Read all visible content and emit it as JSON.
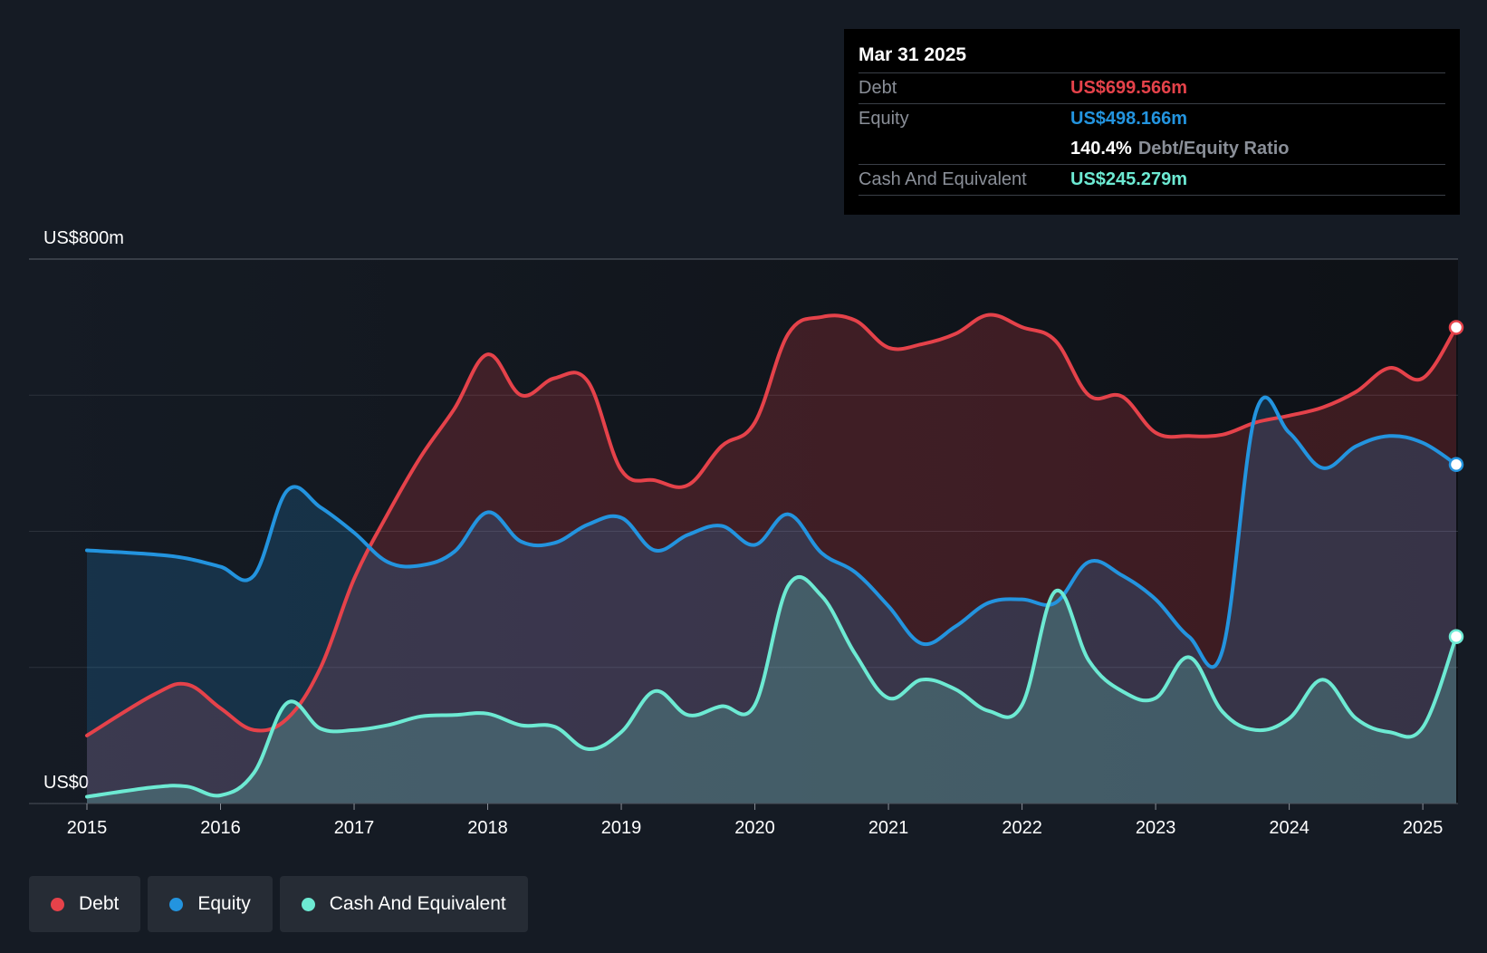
{
  "chart_data": {
    "type": "area",
    "title": "",
    "y_axis_labels": {
      "max": "US$800m",
      "min": "US$0"
    },
    "ylim": [
      0,
      800
    ],
    "xlim": [
      2015,
      2025.25
    ],
    "x_ticks": [
      2015,
      2016,
      2017,
      2018,
      2019,
      2020,
      2021,
      2022,
      2023,
      2024,
      2025
    ],
    "x_tick_labels": [
      "2015",
      "2016",
      "2017",
      "2018",
      "2019",
      "2020",
      "2021",
      "2022",
      "2023",
      "2024",
      "2025"
    ],
    "grid_values": [
      0,
      200,
      400,
      600,
      800
    ],
    "series": [
      {
        "name": "Debt",
        "color": "#e5424a",
        "points": [
          [
            2015.0,
            100
          ],
          [
            2015.5,
            160
          ],
          [
            2015.75,
            175
          ],
          [
            2016.0,
            140
          ],
          [
            2016.25,
            108
          ],
          [
            2016.5,
            125
          ],
          [
            2016.75,
            200
          ],
          [
            2017.0,
            330
          ],
          [
            2017.25,
            425
          ],
          [
            2017.5,
            510
          ],
          [
            2017.75,
            580
          ],
          [
            2018.0,
            660
          ],
          [
            2018.25,
            600
          ],
          [
            2018.5,
            625
          ],
          [
            2018.75,
            620
          ],
          [
            2019.0,
            490
          ],
          [
            2019.25,
            475
          ],
          [
            2019.5,
            468
          ],
          [
            2019.75,
            525
          ],
          [
            2020.0,
            560
          ],
          [
            2020.25,
            690
          ],
          [
            2020.5,
            715
          ],
          [
            2020.75,
            710
          ],
          [
            2021.0,
            670
          ],
          [
            2021.25,
            675
          ],
          [
            2021.5,
            690
          ],
          [
            2021.75,
            718
          ],
          [
            2022.0,
            700
          ],
          [
            2022.25,
            680
          ],
          [
            2022.5,
            600
          ],
          [
            2022.75,
            598
          ],
          [
            2023.0,
            545
          ],
          [
            2023.25,
            540
          ],
          [
            2023.5,
            542
          ],
          [
            2023.75,
            560
          ],
          [
            2024.0,
            570
          ],
          [
            2024.25,
            582
          ],
          [
            2024.5,
            605
          ],
          [
            2024.75,
            640
          ],
          [
            2025.0,
            625
          ],
          [
            2025.25,
            699.566
          ]
        ]
      },
      {
        "name": "Equity",
        "color": "#2394df",
        "points": [
          [
            2015.0,
            372
          ],
          [
            2015.5,
            366
          ],
          [
            2015.75,
            360
          ],
          [
            2016.0,
            348
          ],
          [
            2016.25,
            335
          ],
          [
            2016.5,
            460
          ],
          [
            2016.75,
            435
          ],
          [
            2017.0,
            398
          ],
          [
            2017.25,
            355
          ],
          [
            2017.5,
            350
          ],
          [
            2017.75,
            370
          ],
          [
            2018.0,
            428
          ],
          [
            2018.25,
            385
          ],
          [
            2018.5,
            383
          ],
          [
            2018.75,
            410
          ],
          [
            2019.0,
            420
          ],
          [
            2019.25,
            372
          ],
          [
            2019.5,
            395
          ],
          [
            2019.75,
            408
          ],
          [
            2020.0,
            380
          ],
          [
            2020.25,
            425
          ],
          [
            2020.5,
            368
          ],
          [
            2020.75,
            340
          ],
          [
            2021.0,
            290
          ],
          [
            2021.25,
            235
          ],
          [
            2021.5,
            260
          ],
          [
            2021.75,
            295
          ],
          [
            2022.0,
            300
          ],
          [
            2022.25,
            295
          ],
          [
            2022.5,
            355
          ],
          [
            2022.75,
            335
          ],
          [
            2023.0,
            300
          ],
          [
            2023.25,
            245
          ],
          [
            2023.5,
            225
          ],
          [
            2023.75,
            575
          ],
          [
            2024.0,
            545
          ],
          [
            2024.25,
            493
          ],
          [
            2024.5,
            525
          ],
          [
            2024.75,
            540
          ],
          [
            2025.0,
            530
          ],
          [
            2025.25,
            498.166
          ]
        ]
      },
      {
        "name": "Cash And Equivalent",
        "color": "#6dead3",
        "points": [
          [
            2015.0,
            10
          ],
          [
            2015.5,
            24
          ],
          [
            2015.75,
            25
          ],
          [
            2016.0,
            12
          ],
          [
            2016.25,
            45
          ],
          [
            2016.5,
            148
          ],
          [
            2016.75,
            110
          ],
          [
            2017.0,
            108
          ],
          [
            2017.25,
            115
          ],
          [
            2017.5,
            128
          ],
          [
            2017.75,
            130
          ],
          [
            2018.0,
            132
          ],
          [
            2018.25,
            115
          ],
          [
            2018.5,
            113
          ],
          [
            2018.75,
            80
          ],
          [
            2019.0,
            105
          ],
          [
            2019.25,
            165
          ],
          [
            2019.5,
            130
          ],
          [
            2019.75,
            143
          ],
          [
            2020.0,
            145
          ],
          [
            2020.25,
            320
          ],
          [
            2020.5,
            305
          ],
          [
            2020.75,
            220
          ],
          [
            2021.0,
            155
          ],
          [
            2021.25,
            182
          ],
          [
            2021.5,
            168
          ],
          [
            2021.75,
            136
          ],
          [
            2022.0,
            145
          ],
          [
            2022.25,
            312
          ],
          [
            2022.5,
            210
          ],
          [
            2022.75,
            165
          ],
          [
            2023.0,
            155
          ],
          [
            2023.25,
            215
          ],
          [
            2023.5,
            135
          ],
          [
            2023.75,
            108
          ],
          [
            2024.0,
            125
          ],
          [
            2024.25,
            182
          ],
          [
            2024.5,
            125
          ],
          [
            2024.75,
            105
          ],
          [
            2025.0,
            112
          ],
          [
            2025.25,
            245.279
          ]
        ]
      }
    ]
  },
  "tooltip": {
    "date": "Mar 31 2025",
    "debt_label": "Debt",
    "debt_value": "US$699.566m",
    "equity_label": "Equity",
    "equity_value": "US$498.166m",
    "ratio_value": "140.4%",
    "ratio_label": "Debt/Equity Ratio",
    "cash_label": "Cash And Equivalent",
    "cash_value": "US$245.279m"
  },
  "legend": [
    {
      "label": "Debt",
      "color": "#e5424a"
    },
    {
      "label": "Equity",
      "color": "#2394df"
    },
    {
      "label": "Cash And Equivalent",
      "color": "#6dead3"
    }
  ]
}
